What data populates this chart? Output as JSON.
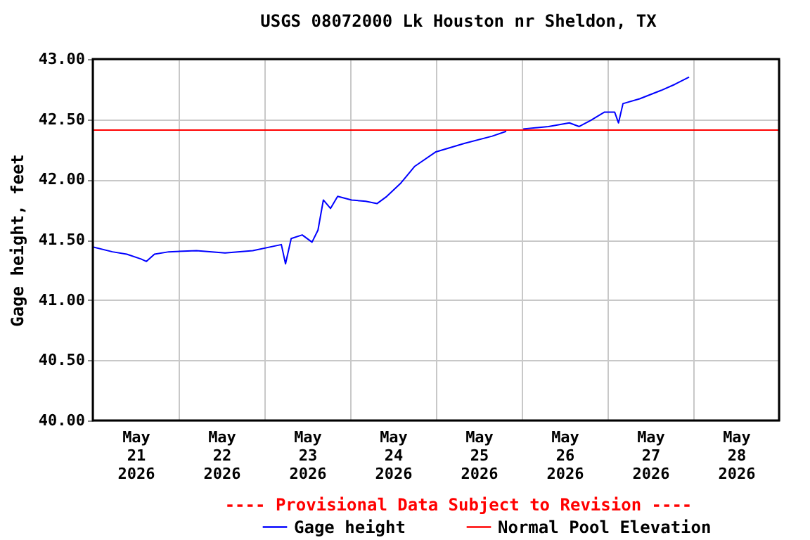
{
  "chart_data": {
    "type": "line",
    "title": "USGS 08072000 Lk Houston nr Sheldon, TX",
    "ylabel": "Gage height, feet",
    "annotations": [
      "---- Provisional Data Subject to Revision ----"
    ],
    "x": [
      "2026-05-21T00:00",
      "2026-05-21T05:30",
      "2026-05-21T09:30",
      "2026-05-21T13:30",
      "2026-05-21T15:00",
      "2026-05-21T17:15",
      "2026-05-21T21:15",
      "2026-05-22T05:00",
      "2026-05-22T13:00",
      "2026-05-22T20:45",
      "2026-05-23T04:45",
      "2026-05-23T05:55",
      "2026-05-23T07:30",
      "2026-05-23T10:35",
      "2026-05-23T13:20",
      "2026-05-23T15:00",
      "2026-05-23T16:30",
      "2026-05-23T18:30",
      "2026-05-23T20:30",
      "2026-05-24T00:25",
      "2026-05-24T04:20",
      "2026-05-24T07:30",
      "2026-05-24T10:15",
      "2026-05-24T14:10",
      "2026-05-24T18:05",
      "2026-05-25T00:00",
      "2026-05-25T07:55",
      "2026-05-25T15:45",
      "2026-05-25T19:40",
      "2026-05-25T22:00",
      "2026-05-26T00:25",
      "2026-05-26T07:30",
      "2026-05-26T13:20",
      "2026-05-26T16:05",
      "2026-05-26T19:15",
      "2026-05-26T23:10",
      "2026-05-27T02:00",
      "2026-05-27T03:05",
      "2026-05-27T04:20",
      "2026-05-27T09:00",
      "2026-05-27T15:00",
      "2026-05-27T18:50",
      "2026-05-27T22:50"
    ],
    "series": [
      {
        "name": "Gage height",
        "color": "#0000ff",
        "values": [
          41.44,
          41.4,
          41.38,
          41.34,
          41.32,
          41.38,
          41.4,
          41.41,
          41.39,
          41.41,
          41.46,
          41.3,
          41.51,
          41.54,
          41.48,
          41.58,
          41.83,
          41.76,
          41.86,
          41.83,
          41.82,
          41.8,
          41.86,
          41.97,
          42.11,
          42.23,
          42.3,
          42.36,
          42.4,
          null,
          42.42,
          42.44,
          42.47,
          42.44,
          42.49,
          42.56,
          42.56,
          42.47,
          42.63,
          42.67,
          42.74,
          42.79,
          42.85
        ]
      }
    ],
    "xlim": [
      "2026-05-21T00:00",
      "2026-05-29T00:00"
    ],
    "xticks": [
      {
        "value": "2026-05-21T00:00",
        "label": null
      },
      {
        "value": "2026-05-21T12:00",
        "label": "May\n21\n2026"
      },
      {
        "value": "2026-05-22T00:00",
        "label": null
      },
      {
        "value": "2026-05-22T12:00",
        "label": "May\n22\n2026"
      },
      {
        "value": "2026-05-23T00:00",
        "label": null
      },
      {
        "value": "2026-05-23T12:00",
        "label": "May\n23\n2026"
      },
      {
        "value": "2026-05-24T00:00",
        "label": null
      },
      {
        "value": "2026-05-24T12:00",
        "label": "May\n24\n2026"
      },
      {
        "value": "2026-05-25T00:00",
        "label": null
      },
      {
        "value": "2026-05-25T12:00",
        "label": "May\n25\n2026"
      },
      {
        "value": "2026-05-26T00:00",
        "label": null
      },
      {
        "value": "2026-05-26T12:00",
        "label": "May\n26\n2026"
      },
      {
        "value": "2026-05-27T00:00",
        "label": null
      },
      {
        "value": "2026-05-27T12:00",
        "label": "May\n27\n2026"
      },
      {
        "value": "2026-05-28T00:00",
        "label": null
      },
      {
        "value": "2026-05-28T12:00",
        "label": "May\n28\n2026"
      },
      {
        "value": "2026-05-29T00:00",
        "label": null
      }
    ],
    "ylim": [
      40,
      43
    ],
    "yticks": [
      {
        "value": 40,
        "label": "40.00"
      },
      {
        "value": 40.5,
        "label": "40.50"
      },
      {
        "value": 41,
        "label": "41.00"
      },
      {
        "value": 41.5,
        "label": "41.50"
      },
      {
        "value": 42,
        "label": "42.00"
      },
      {
        "value": 42.5,
        "label": "42.50"
      },
      {
        "value": 43,
        "label": "43.00"
      }
    ],
    "ref_lines": [
      {
        "axis": "y",
        "value": 42.41,
        "label": "Normal Pool Elevation",
        "color": "#ff0000"
      }
    ],
    "grid": true,
    "legend": "bottom"
  }
}
